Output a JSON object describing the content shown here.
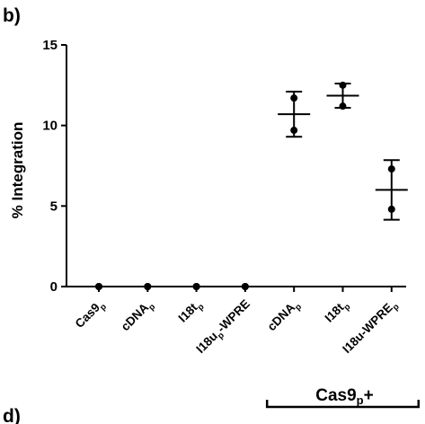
{
  "panel_label": "b)",
  "next_panel_label": "d)",
  "chart_data": {
    "type": "scatter",
    "ylabel": "% Integration",
    "ylim": [
      0,
      15
    ],
    "yticks": [
      0,
      5,
      10,
      15
    ],
    "categories": [
      {
        "main": "Cas9",
        "sub": "p",
        "tail": ""
      },
      {
        "main": "cDNA",
        "sub": "p",
        "tail": ""
      },
      {
        "main": "I18t",
        "sub": "p",
        "tail": ""
      },
      {
        "main": "I18u",
        "sub": "p",
        "tail": "-WPRE"
      },
      {
        "main": "cDNA",
        "sub": "p",
        "tail": ""
      },
      {
        "main": "I18t",
        "sub": "p",
        "tail": ""
      },
      {
        "main": "I18u-WPRE",
        "sub": "p",
        "tail": ""
      }
    ],
    "points": [
      [
        0,
        0
      ],
      [
        0,
        0
      ],
      [
        0,
        0
      ],
      [
        0,
        0
      ],
      [
        11.7,
        9.7
      ],
      [
        12.5,
        11.2
      ],
      [
        7.3,
        4.8
      ]
    ],
    "mean": [
      0,
      0,
      0,
      0,
      10.7,
      11.85,
      6.0
    ],
    "error": [
      0,
      0,
      0,
      0,
      1.4,
      0.75,
      1.85
    ],
    "group": {
      "label_main": "Cas9",
      "label_sub": "p",
      "label_tail": "+",
      "from_index": 4,
      "to_index": 6
    },
    "grid": false,
    "legend": "none"
  }
}
